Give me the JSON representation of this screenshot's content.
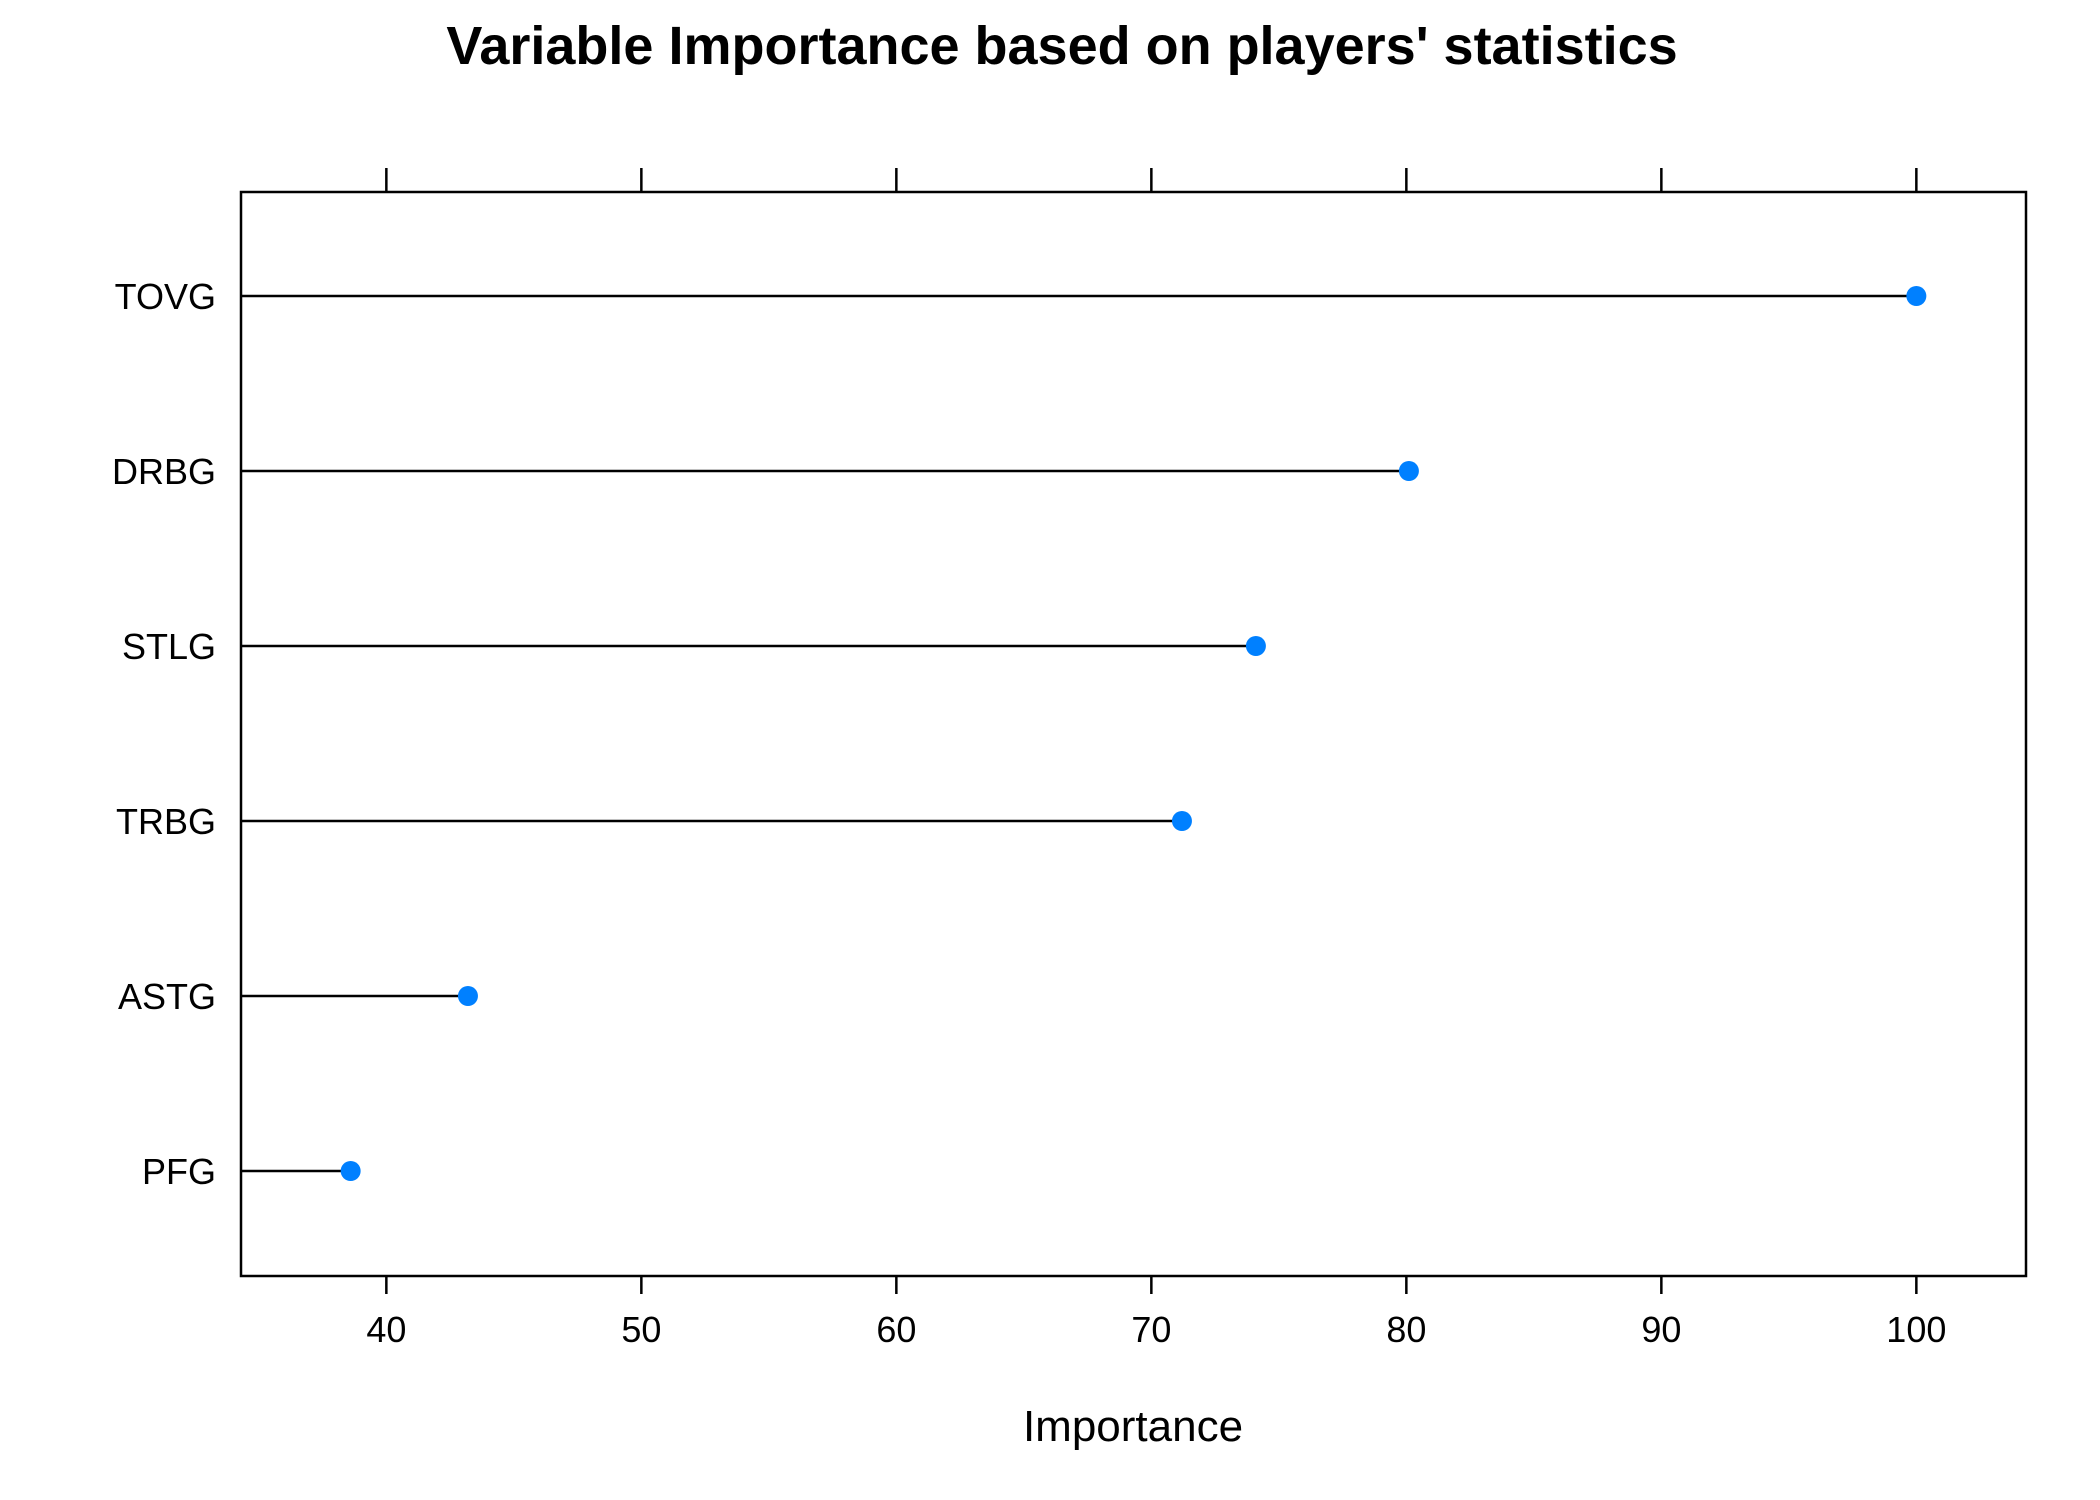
{
  "chart_data": {
    "type": "dot",
    "title": "Variable Importance based on players' statistics",
    "xlabel": "Importance",
    "ylabel": "",
    "xlim": [
      34.3,
      104.3
    ],
    "xticks": [
      40,
      50,
      60,
      70,
      80,
      90,
      100
    ],
    "categories": [
      "TOVG",
      "DRBG",
      "STLG",
      "TRBG",
      "ASTG",
      "PFG"
    ],
    "values": [
      100,
      80.1,
      74.1,
      71.2,
      43.2,
      38.6
    ],
    "point_color": "#0080ff",
    "line_color": "#000000",
    "grid": false
  }
}
